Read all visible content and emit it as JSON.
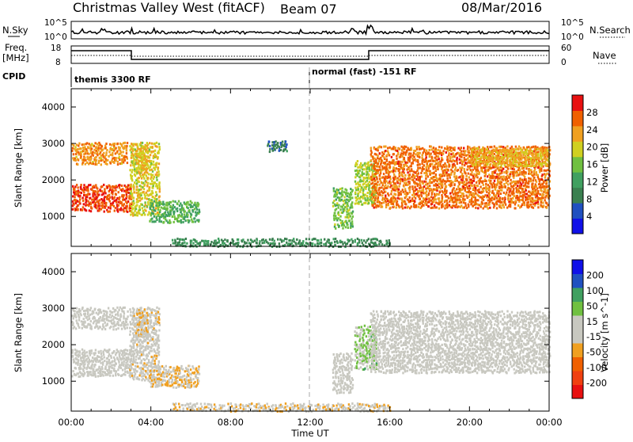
{
  "header": {
    "station": "Christmas Valley West (fitACF)",
    "beam": "Beam 07",
    "date": "08/Mar/2016"
  },
  "status_panel": {
    "nsky_label": "N.Sky",
    "nsky_top": "10^5",
    "nsky_bottom": "10^0",
    "nsearch_label": "N.Search",
    "nsearch_top": "10^5",
    "nsearch_bottom": "10^0",
    "freq_label_1": "Freq.",
    "freq_label_2": "[MHz]",
    "freq_top": "18",
    "freq_bottom": "8",
    "nave_label": "Nave",
    "nave_top": "60",
    "nave_bottom": "0",
    "cpid_label": "CPID",
    "cpid_1": "themis 3300 RF",
    "cpid_2": "normal (fast) -151 RF"
  },
  "colors": {
    "power": [
      "#1010e8",
      "#2050c0",
      "#3a8050",
      "#40a060",
      "#70c040",
      "#d0d020",
      "#f0a020",
      "#f06000",
      "#e81010"
    ],
    "velocity": [
      "#e81010",
      "#f04010",
      "#f06000",
      "#f0a020",
      "#c8c8c0",
      "#c8c8c0",
      "#70c040",
      "#40a060",
      "#2050c0",
      "#1010e8"
    ]
  },
  "chart_data": [
    {
      "type": "heatmap",
      "name": "power",
      "ylabel": "Slant Range [km]",
      "colorbar_label": "Power [dB]",
      "colorbar_ticks": [
        "4",
        "8",
        "12",
        "16",
        "20",
        "24",
        "28"
      ],
      "x_ticks": [
        "00:00",
        "04:00",
        "08:00",
        "12:00",
        "16:00",
        "20:00",
        "00:00"
      ],
      "y_ticks": [
        "1000",
        "2000",
        "3000",
        "4000"
      ],
      "ylim": [
        180,
        4500
      ],
      "xlim_hours": [
        0,
        24
      ],
      "regions": [
        {
          "t0": 0.0,
          "t1": 3.0,
          "r0": 1150,
          "r1": 1900,
          "v": 28
        },
        {
          "t0": 0.0,
          "t1": 2.8,
          "r0": 2450,
          "r1": 3050,
          "v": 24
        },
        {
          "t0": 2.9,
          "t1": 4.4,
          "r0": 1050,
          "r1": 3050,
          "v": 20
        },
        {
          "t0": 3.9,
          "t1": 6.4,
          "r0": 850,
          "r1": 1450,
          "v": 14
        },
        {
          "t0": 3.2,
          "t1": 3.8,
          "r0": 2200,
          "r1": 3000,
          "v": 22
        },
        {
          "t0": 9.8,
          "t1": 10.8,
          "r0": 2800,
          "r1": 3100,
          "v": 8
        },
        {
          "t0": 13.1,
          "t1": 14.1,
          "r0": 700,
          "r1": 1800,
          "v": 16
        },
        {
          "t0": 14.2,
          "t1": 15.3,
          "r0": 1350,
          "r1": 2550,
          "v": 18
        },
        {
          "t0": 15.0,
          "t1": 24.0,
          "r0": 1250,
          "r1": 2950,
          "v": 26
        },
        {
          "t0": 20.0,
          "t1": 24.0,
          "r0": 2400,
          "r1": 2900,
          "v": 22
        },
        {
          "t0": 5.0,
          "t1": 16.0,
          "r0": 200,
          "r1": 420,
          "v": 10
        }
      ]
    },
    {
      "type": "heatmap",
      "name": "velocity",
      "xlabel": "Time UT",
      "ylabel": "Slant Range [km]",
      "colorbar_label": "Velocity [m s^-1]",
      "colorbar_ticks": [
        "-200",
        "-100",
        "-50",
        "-15",
        "15",
        "50",
        "100",
        "200"
      ],
      "x_ticks": [
        "00:00",
        "04:00",
        "08:00",
        "12:00",
        "16:00",
        "20:00",
        "00:00"
      ],
      "y_ticks": [
        "1000",
        "2000",
        "3000",
        "4000"
      ],
      "ylim": [
        180,
        4500
      ],
      "xlim_hours": [
        0,
        24
      ],
      "regions": [
        {
          "t0": 0.0,
          "t1": 3.0,
          "r0": 1150,
          "r1": 1900,
          "v": 0
        },
        {
          "t0": 0.0,
          "t1": 2.8,
          "r0": 2450,
          "r1": 3050,
          "v": 0
        },
        {
          "t0": 2.9,
          "t1": 4.4,
          "r0": 1050,
          "r1": 3050,
          "v": -15
        },
        {
          "t0": 3.9,
          "t1": 6.4,
          "r0": 850,
          "r1": 1450,
          "v": -50
        },
        {
          "t0": 3.2,
          "t1": 3.8,
          "r0": 2200,
          "r1": 3000,
          "v": -50
        },
        {
          "t0": 13.1,
          "t1": 14.1,
          "r0": 700,
          "r1": 1800,
          "v": 0
        },
        {
          "t0": 14.2,
          "t1": 15.3,
          "r0": 1350,
          "r1": 2550,
          "v": 60
        },
        {
          "t0": 15.0,
          "t1": 24.0,
          "r0": 1250,
          "r1": 2950,
          "v": 0
        },
        {
          "t0": 5.0,
          "t1": 16.0,
          "r0": 200,
          "r1": 420,
          "v": -30
        }
      ]
    }
  ]
}
